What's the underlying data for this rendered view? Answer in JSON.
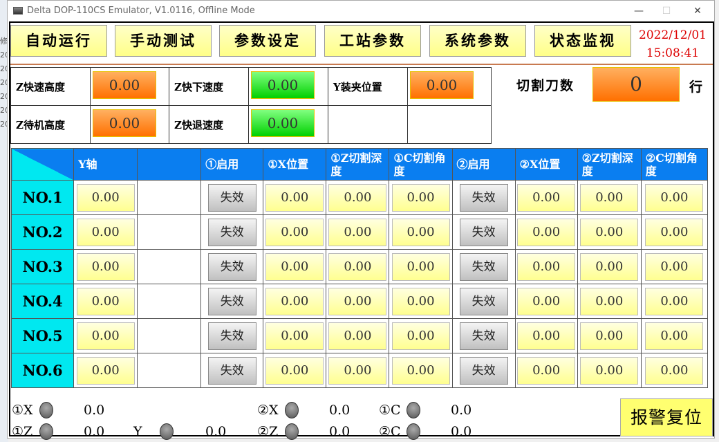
{
  "window": {
    "title": "Delta DOP-110CS Emulator, V1.0116, Offline Mode",
    "minimize": "—",
    "maximize": "☐",
    "close": "✕"
  },
  "behind_chars": [
    "修",
    "20",
    "20",
    "20",
    "20",
    "20",
    "20"
  ],
  "nav": [
    "自动运行",
    "手动测试",
    "参数设定",
    "工站参数",
    "系统参数",
    "状态监视"
  ],
  "datetime": {
    "date": "2022/12/01",
    "time": "15:08:41"
  },
  "params": [
    {
      "label": "Z快速高度",
      "value": "0.00",
      "color": "orange"
    },
    {
      "label": "Z快下速度",
      "value": "0.00",
      "color": "green"
    },
    {
      "label": "Y装夹位置",
      "value": "0.00",
      "color": "orange"
    },
    {
      "label": "Z待机高度",
      "value": "0.00",
      "color": "orange"
    },
    {
      "label": "Z快退速度",
      "value": "0.00",
      "color": "green"
    }
  ],
  "cut_count": {
    "label": "切割刀数",
    "value": "0",
    "unit": "行"
  },
  "grid": {
    "headers": [
      "Y轴",
      "",
      "①启用",
      "①X位置",
      "①Z切割深度",
      "①C切割角度",
      "②启用",
      "②X位置",
      "②Z切割深度",
      "②C切割角度"
    ],
    "rows": [
      {
        "name": "NO.1",
        "y": "0.00",
        "en1": "失效",
        "x1": "0.00",
        "z1": "0.00",
        "c1": "0.00",
        "en2": "失效",
        "x2": "0.00",
        "z2": "0.00",
        "c2": "0.00"
      },
      {
        "name": "NO.2",
        "y": "0.00",
        "en1": "失效",
        "x1": "0.00",
        "z1": "0.00",
        "c1": "0.00",
        "en2": "失效",
        "x2": "0.00",
        "z2": "0.00",
        "c2": "0.00"
      },
      {
        "name": "NO.3",
        "y": "0.00",
        "en1": "失效",
        "x1": "0.00",
        "z1": "0.00",
        "c1": "0.00",
        "en2": "失效",
        "x2": "0.00",
        "z2": "0.00",
        "c2": "0.00"
      },
      {
        "name": "NO.4",
        "y": "0.00",
        "en1": "失效",
        "x1": "0.00",
        "z1": "0.00",
        "c1": "0.00",
        "en2": "失效",
        "x2": "0.00",
        "z2": "0.00",
        "c2": "0.00"
      },
      {
        "name": "NO.5",
        "y": "0.00",
        "en1": "失效",
        "x1": "0.00",
        "z1": "0.00",
        "c1": "0.00",
        "en2": "失效",
        "x2": "0.00",
        "z2": "0.00",
        "c2": "0.00"
      },
      {
        "name": "NO.6",
        "y": "0.00",
        "en1": "失效",
        "x1": "0.00",
        "z1": "0.00",
        "c1": "0.00",
        "en2": "失效",
        "x2": "0.00",
        "z2": "0.00",
        "c2": "0.00"
      }
    ]
  },
  "status": [
    {
      "label": "①X",
      "value": "0.0"
    },
    {
      "label": "②X",
      "value": "0.0"
    },
    {
      "label": "①C",
      "value": "0.0"
    },
    {
      "label": "①Z",
      "value": "0.0"
    },
    {
      "label": "Y",
      "value": "0.0"
    },
    {
      "label": "②Z",
      "value": "0.0"
    },
    {
      "label": "②C",
      "value": "0.0"
    }
  ],
  "alarm_reset": "报警复位",
  "colors": {
    "header_blue": "#0a7ef0",
    "row_cyan": "#00e8f0",
    "date_red": "#dd0000"
  }
}
